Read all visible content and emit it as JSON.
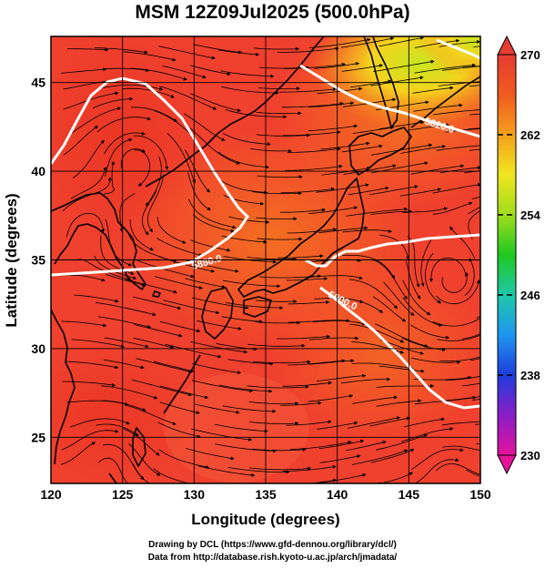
{
  "title": "MSM 12Z09Jul2025 (500.0hPa)",
  "credits": {
    "line1": "Drawing by DCL (https://www.gfd-dennou.org/library/dcl/)",
    "line2": "Data from http://database.rish.kyoto-u.ac.jp/arch/jmadata/"
  },
  "map": {
    "xlabel": "Longitude (degrees)",
    "ylabel": "Latitude  (degrees)",
    "xlim": [
      120,
      150
    ],
    "ylim": [
      22.4,
      47.6
    ],
    "xticks": [
      "120",
      "125",
      "130",
      "135",
      "140",
      "145",
      "150"
    ],
    "yticks": [
      "25",
      "30",
      "35",
      "40",
      "45"
    ],
    "contour_labels": [
      "5820.0",
      "5880.0",
      "5900.0"
    ],
    "colors": {
      "land_coast": "#000000",
      "contour": "#ffffff",
      "warm": "#f0402e",
      "hot": "#e8321f",
      "orange": "#f57a1e",
      "yellow": "#f5d21e",
      "green": "#c8e61e"
    }
  },
  "colorbar": {
    "ticks": [
      "270",
      "262",
      "254",
      "246",
      "238",
      "230"
    ],
    "range": [
      230,
      270
    ],
    "stops": [
      "#e6129b",
      "#8a1ec8",
      "#1e3cdc",
      "#1e96f0",
      "#1ec8aa",
      "#1ec81e",
      "#a0dc1e",
      "#f0e61e",
      "#f5a01e",
      "#f05a1e",
      "#e63c32"
    ]
  }
}
